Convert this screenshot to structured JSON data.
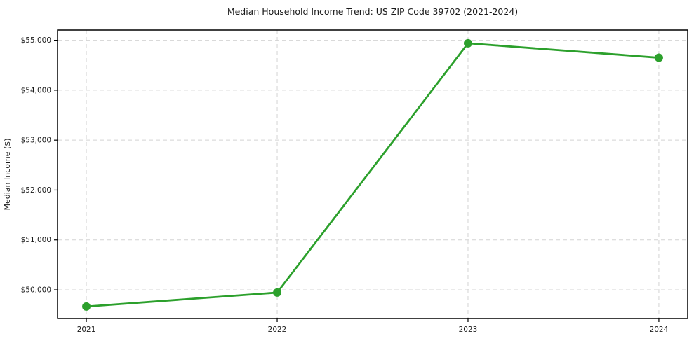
{
  "figure": {
    "background": "#ffffff"
  },
  "chart_data": {
    "type": "line",
    "title": "Median Household Income Trend: US ZIP Code 39702 (2021-2024)",
    "xlabel": "",
    "ylabel": "Median Income ($)",
    "categories": [
      "2021",
      "2022",
      "2023",
      "2024"
    ],
    "x": [
      2021,
      2022,
      2023,
      2024
    ],
    "series": [
      {
        "name": "Median Household Income",
        "values": [
          49665,
          49945,
          54940,
          54650
        ]
      }
    ],
    "x_tick_labels": [
      "2021",
      "2022",
      "2023",
      "2024"
    ],
    "y_ticks": [
      50000,
      51000,
      52000,
      53000,
      54000,
      55000
    ],
    "y_tick_labels": [
      "$50,000",
      "$51,000",
      "$52,000",
      "$53,000",
      "$54,000",
      "$55,000"
    ],
    "xlim": [
      2020.849,
      2024.151
    ],
    "ylim": [
      49425,
      55205
    ],
    "grid": "both, dashed",
    "legend_position": "none",
    "colors": {
      "line": "#2ca02c",
      "marker": "#2ca02c",
      "grid": "#d4d4d4",
      "spine": "#000000",
      "text": "#1a1a1a",
      "background": "#ffffff"
    }
  }
}
